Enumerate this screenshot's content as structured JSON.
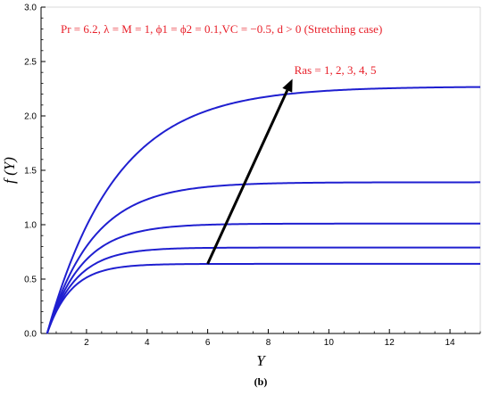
{
  "chart_data": {
    "type": "line",
    "xlabel": "Y",
    "ylabel": "f (Y)",
    "xlim": [
      0.5,
      15
    ],
    "ylim": [
      0,
      3.0
    ],
    "xticks": [
      "2",
      "4",
      "6",
      "8",
      "10",
      "12",
      "14"
    ],
    "yticks": [
      "0.0",
      "0.5",
      "1.0",
      "1.5",
      "2.0",
      "2.5",
      "3.0"
    ],
    "grid": false,
    "parameters_text": "Pr = 6.2, λ = M = 1, ϕ1 = ϕ2 = 0.1,VC = −0.5, d > 0 (Stretching case)",
    "annotation_text": "Ras = 1, 2, 3, 4, 5",
    "series_color": "#1f1fd0",
    "arrow_color": "#000000",
    "caption": "(b)",
    "series": [
      {
        "x0": 0.7,
        "asymptote": 0.64,
        "rate": 1.25
      },
      {
        "x0": 0.7,
        "asymptote": 0.79,
        "rate": 1.05
      },
      {
        "x0": 0.7,
        "asymptote": 1.01,
        "rate": 0.86
      },
      {
        "x0": 0.7,
        "asymptote": 1.39,
        "rate": 0.66
      },
      {
        "x0": 0.7,
        "asymptote": 2.27,
        "rate": 0.44
      }
    ],
    "arrow": {
      "from": [
        6.0,
        0.64
      ],
      "to": [
        8.8,
        2.34
      ]
    },
    "annotation_at": [
      8.8,
      2.42
    ]
  }
}
